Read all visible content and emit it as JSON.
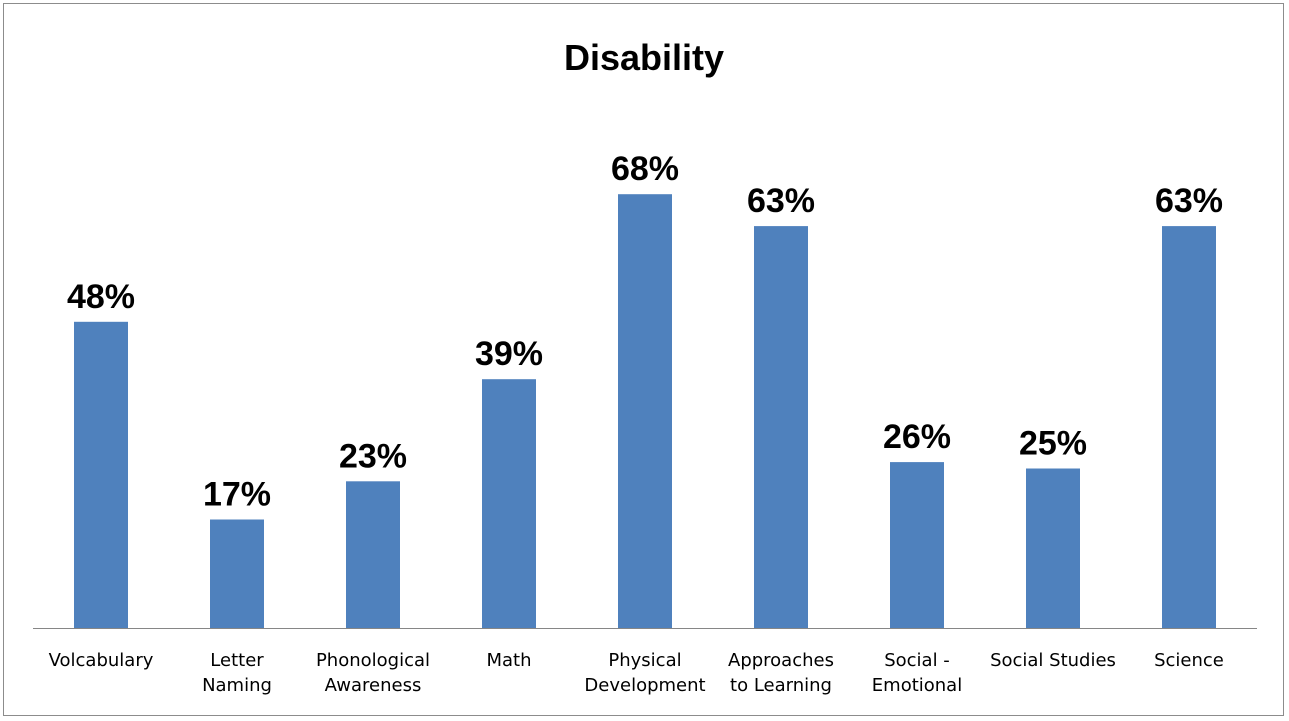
{
  "chart_data": {
    "type": "bar",
    "title": "Disability",
    "categories": [
      "Volcabulary",
      "Letter Naming",
      "Phonological Awareness",
      "Math",
      "Physical Development",
      "Approaches to Learning",
      "Social - Emotional",
      "Social Studies",
      "Science"
    ],
    "category_lines": [
      [
        "Volcabulary"
      ],
      [
        "Letter",
        "Naming"
      ],
      [
        "Phonological",
        "Awareness"
      ],
      [
        "Math"
      ],
      [
        "Physical",
        "Development"
      ],
      [
        "Approaches",
        "to Learning"
      ],
      [
        "Social -",
        "Emotional"
      ],
      [
        "Social Studies"
      ],
      [
        "Science"
      ]
    ],
    "values": [
      48,
      17,
      23,
      39,
      68,
      63,
      26,
      25,
      63
    ],
    "data_labels": [
      "48%",
      "17%",
      "23%",
      "39%",
      "68%",
      "63%",
      "26%",
      "25%",
      "63%"
    ],
    "ylim": [
      0,
      100
    ],
    "bar_color": "#4F81BD",
    "axis_color": "#868686",
    "grid": false,
    "legend": "none",
    "xlabel": "",
    "ylabel": ""
  }
}
